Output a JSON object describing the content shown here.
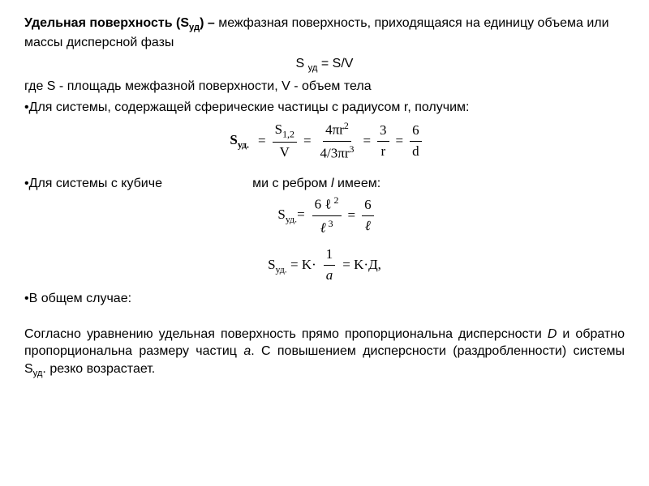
{
  "title_part_bold": "Удельная поверхность (S",
  "title_sub_bold": "уд",
  "title_close_bold": ") – ",
  "title_rest": "межфазная поверхность, приходящаяся на единицу объема или массы дисперсной фазы",
  "formula_main_plain": "S ",
  "formula_main_sub": "уд",
  "formula_main_eq": " = S/V",
  "line_where": "где S - площадь межфазной поверхности, V - объем тела",
  "bullet1": "Для системы, содержащей сферические частицы с радиусом r, получим:",
  "f1_label": "S",
  "f1_label_sub": "уд.",
  "f1_num1": "S",
  "f1_num1_sub": "1,2",
  "f1_den1": "V",
  "f1_num2": "4πr",
  "f1_num2_sup": "2",
  "f1_den2_a": "4/3πr",
  "f1_den2_sup": "3",
  "f1_num3": "3",
  "f1_den3": "r",
  "f1_num4": "6",
  "f1_den4": "d",
  "bullet2_a": "Для системы с кубиче",
  "bullet2_gap": "                         ",
  "bullet2_b": "ми с ребром ",
  "bullet2_l": "l",
  "bullet2_c": "  имеем:",
  "f2_label": "S",
  "f2_label_sub": "уд.",
  "f2_eqmark": "=",
  "f2_num1": "6 ℓ",
  "f2_num1_sup": " 2",
  "f2_den1": "ℓ",
  "f2_den1_sup": " 3",
  "f2_num2": "6",
  "f2_den2": "ℓ",
  "f3_label": "S",
  "f3_label_sub": "уд.",
  "f3_eq1": " = K·",
  "f3_num": "1",
  "f3_den": "a",
  "f3_eq2": " = K·Д,",
  "bullet3": "В общем случае:",
  "conclusion_a": "Согласно уравнению удельная поверхность прямо пропорциональна дисперсности ",
  "conclusion_D": "D",
  "conclusion_b": " и обратно пропорциональна размеру частиц ",
  "conclusion_aa": "a",
  "conclusion_c": ". С повышением дисперсности (раздробленности) системы S",
  "conclusion_sub": "уд",
  "conclusion_d": ". резко возрастает."
}
